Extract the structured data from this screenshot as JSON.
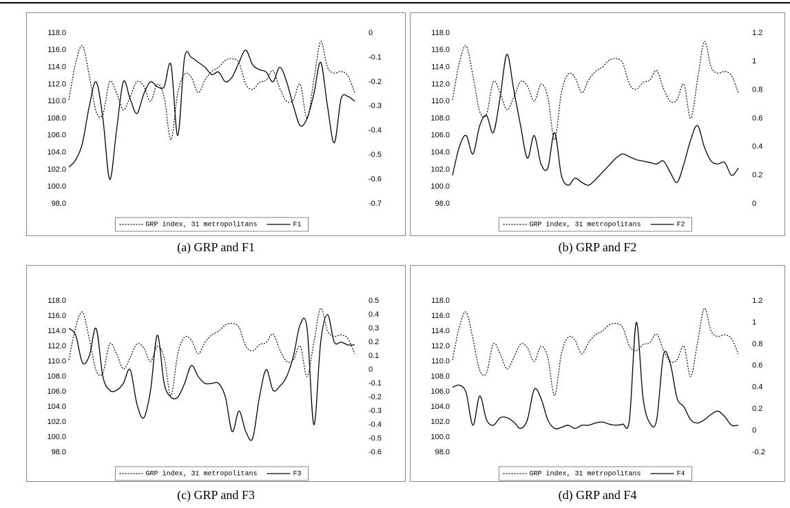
{
  "chart_data": [
    {
      "type": "line",
      "caption": "(a) GRP and F1",
      "categories": [
        null,
        null,
        null,
        null,
        null,
        null,
        null,
        null,
        null,
        null,
        null,
        null,
        null,
        null,
        null,
        null,
        null,
        null,
        null,
        null,
        null,
        null,
        null,
        null,
        null,
        null,
        null,
        null,
        null,
        null,
        null,
        null,
        null,
        null,
        null,
        null,
        null,
        null,
        null,
        null,
        null,
        null,
        null
      ],
      "series": [
        {
          "name": "GRP index, 31 metropolitans",
          "color": "#000000",
          "style": "dotted",
          "values": [
            110.2,
            114.5,
            116.5,
            113,
            108.8,
            108.5,
            112.3,
            111,
            109,
            110.5,
            112.3,
            111.8,
            110,
            112,
            110.5,
            105.5,
            111,
            113.2,
            112.8,
            111,
            112.5,
            113.5,
            114,
            114.8,
            115,
            114.5,
            112,
            111.4,
            112.2,
            112.5,
            113.6,
            111.5,
            110,
            110.2,
            112,
            108,
            112.5,
            117,
            114,
            113.3,
            113.5,
            113,
            111
          ]
        },
        {
          "name": "F1",
          "color": "#000000",
          "style": "solid",
          "axis": "y2",
          "values": [
            -0.55,
            -0.52,
            -0.45,
            -0.3,
            -0.2,
            -0.35,
            -0.6,
            -0.4,
            -0.2,
            -0.27,
            -0.33,
            -0.25,
            -0.2,
            -0.22,
            -0.22,
            -0.13,
            -0.42,
            -0.1,
            -0.1,
            -0.12,
            -0.14,
            -0.17,
            -0.16,
            -0.2,
            -0.18,
            -0.12,
            -0.07,
            -0.13,
            -0.15,
            -0.16,
            -0.2,
            -0.14,
            -0.2,
            -0.3,
            -0.38,
            -0.35,
            -0.25,
            -0.12,
            -0.3,
            -0.45,
            -0.27,
            -0.26,
            -0.28
          ]
        }
      ],
      "ylim": [
        98,
        118
      ],
      "yticks": [
        {
          "value": 98,
          "label": "98.0"
        },
        {
          "value": 100,
          "label": "100.0"
        },
        {
          "value": 102,
          "label": "102.0"
        },
        {
          "value": 104,
          "label": "104.0"
        },
        {
          "value": 106,
          "label": "106.0"
        },
        {
          "value": 108,
          "label": "108.0"
        },
        {
          "value": 110,
          "label": "110.0"
        },
        {
          "value": 112,
          "label": "112.0"
        },
        {
          "value": 114,
          "label": "114.0"
        },
        {
          "value": 116,
          "label": "116.0"
        },
        {
          "value": 118,
          "label": "118.0"
        }
      ],
      "y2lim": [
        -0.7,
        0
      ],
      "y2ticks": [
        -0.7,
        -0.6,
        -0.5,
        -0.4,
        -0.3,
        -0.2,
        -0.1,
        0
      ]
    },
    {
      "type": "line",
      "caption": "(b) GRP and F2",
      "categories": [
        null,
        null,
        null,
        null,
        null,
        null,
        null,
        null,
        null,
        null,
        null,
        null,
        null,
        null,
        null,
        null,
        null,
        null,
        null,
        null,
        null,
        null,
        null,
        null,
        null,
        null,
        null,
        null,
        null,
        null,
        null,
        null,
        null,
        null,
        null,
        null,
        null,
        null,
        null,
        null,
        null,
        null,
        null
      ],
      "series": [
        {
          "name": "GRP index, 31 metropolitans",
          "color": "#000000",
          "style": "dotted",
          "values": [
            110.2,
            114.5,
            116.5,
            113,
            108.8,
            108.5,
            112.3,
            111,
            109,
            110.5,
            112.3,
            111.8,
            110,
            112,
            110.5,
            105.5,
            111,
            113.2,
            112.8,
            111,
            112.5,
            113.5,
            114,
            114.8,
            115,
            114.5,
            112,
            111.4,
            112.2,
            112.5,
            113.6,
            111.5,
            110,
            110.2,
            112,
            108,
            112.5,
            117,
            114,
            113.3,
            113.5,
            113,
            111
          ]
        },
        {
          "name": "F2",
          "color": "#000000",
          "style": "solid",
          "axis": "y2",
          "values": [
            0.2,
            0.4,
            0.48,
            0.35,
            0.55,
            0.62,
            0.5,
            0.75,
            1.05,
            0.8,
            0.55,
            0.32,
            0.48,
            0.28,
            0.25,
            0.5,
            0.2,
            0.13,
            0.18,
            0.15,
            0.13,
            0.17,
            0.22,
            0.27,
            0.32,
            0.35,
            0.33,
            0.31,
            0.3,
            0.29,
            0.28,
            0.3,
            0.22,
            0.15,
            0.28,
            0.45,
            0.55,
            0.4,
            0.3,
            0.28,
            0.29,
            0.2,
            0.25
          ]
        }
      ],
      "ylim": [
        98,
        118
      ],
      "yticks": [
        {
          "value": 98,
          "label": "98.0"
        },
        {
          "value": 100,
          "label": "100.0"
        },
        {
          "value": 102,
          "label": "102.0"
        },
        {
          "value": 104,
          "label": "104.0"
        },
        {
          "value": 106,
          "label": "106.0"
        },
        {
          "value": 108,
          "label": "108.0"
        },
        {
          "value": 110,
          "label": "110.0"
        },
        {
          "value": 112,
          "label": "112.0"
        },
        {
          "value": 114,
          "label": "114.0"
        },
        {
          "value": 116,
          "label": "116.0"
        },
        {
          "value": 118,
          "label": "118.0"
        }
      ],
      "y2lim": [
        0,
        1.2
      ],
      "y2ticks": [
        0,
        0.2,
        0.4,
        0.6,
        0.8,
        1,
        1.2
      ]
    },
    {
      "type": "line",
      "caption": "(c) GRP and F3",
      "categories": [
        null,
        null,
        null,
        null,
        null,
        null,
        null,
        null,
        null,
        null,
        null,
        null,
        null,
        null,
        null,
        null,
        null,
        null,
        null,
        null,
        null,
        null,
        null,
        null,
        null,
        null,
        null,
        null,
        null,
        null,
        null,
        null,
        null,
        null,
        null,
        null,
        null,
        null,
        null,
        null,
        null,
        null,
        null
      ],
      "series": [
        {
          "name": "GRP index, 31 metropolitans",
          "color": "#000000",
          "style": "dotted",
          "values": [
            110.2,
            114.5,
            116.5,
            113,
            108.8,
            108.5,
            112.3,
            111,
            109,
            110.5,
            112.3,
            111.8,
            110,
            112,
            110.5,
            105.5,
            111,
            113.2,
            112.8,
            111,
            112.5,
            113.5,
            114,
            114.8,
            115,
            114.5,
            112,
            111.4,
            112.2,
            112.5,
            113.6,
            111.5,
            110,
            110.2,
            112,
            108,
            112.5,
            117,
            114,
            113.3,
            113.5,
            113,
            111
          ]
        },
        {
          "name": "F3",
          "color": "#000000",
          "style": "solid",
          "axis": "y2",
          "values": [
            0.3,
            0.25,
            0.05,
            0.1,
            0.3,
            -0.05,
            -0.15,
            -0.15,
            -0.1,
            0,
            -0.25,
            -0.35,
            -0.15,
            0.25,
            -0.1,
            -0.2,
            -0.2,
            -0.1,
            0.03,
            -0.05,
            -0.1,
            -0.1,
            -0.1,
            -0.2,
            -0.45,
            -0.3,
            -0.45,
            -0.5,
            -0.2,
            0,
            -0.15,
            -0.12,
            -0.05,
            0.1,
            0.33,
            0.3,
            -0.4,
            0.2,
            0.4,
            0.2,
            0.2,
            0.18,
            0.18
          ]
        }
      ],
      "ylim": [
        98,
        118
      ],
      "yticks": [
        {
          "value": 98,
          "label": "98.0"
        },
        {
          "value": 100,
          "label": "100.0"
        },
        {
          "value": 102,
          "label": "102.0"
        },
        {
          "value": 104,
          "label": "104.0"
        },
        {
          "value": 106,
          "label": "106.0"
        },
        {
          "value": 108,
          "label": "108.0"
        },
        {
          "value": 110,
          "label": "110.0"
        },
        {
          "value": 112,
          "label": "112.0"
        },
        {
          "value": 114,
          "label": "114.0"
        },
        {
          "value": 116,
          "label": "116.0"
        },
        {
          "value": 118,
          "label": "118.0"
        }
      ],
      "y2lim": [
        -0.6,
        0.5
      ],
      "y2ticks": [
        -0.6,
        -0.5,
        -0.4,
        -0.3,
        -0.2,
        -0.1,
        0,
        0.1,
        0.2,
        0.3,
        0.4,
        0.5
      ]
    },
    {
      "type": "line",
      "caption": "(d) GRP and F4",
      "categories": [
        null,
        null,
        null,
        null,
        null,
        null,
        null,
        null,
        null,
        null,
        null,
        null,
        null,
        null,
        null,
        null,
        null,
        null,
        null,
        null,
        null,
        null,
        null,
        null,
        null,
        null,
        null,
        null,
        null,
        null,
        null,
        null,
        null,
        null,
        null,
        null,
        null,
        null,
        null,
        null,
        null,
        null,
        null
      ],
      "series": [
        {
          "name": "GRP index, 31 metropolitans",
          "color": "#000000",
          "style": "dotted",
          "values": [
            110.2,
            114.5,
            116.5,
            113,
            108.8,
            108.5,
            112.3,
            111,
            109,
            110.5,
            112.3,
            111.8,
            110,
            112,
            110.5,
            105.5,
            111,
            113.2,
            112.8,
            111,
            112.5,
            113.5,
            114,
            114.8,
            115,
            114.5,
            112,
            111.4,
            112.2,
            112.5,
            113.6,
            111.5,
            110,
            110.2,
            112,
            108,
            112.5,
            117,
            114,
            113.3,
            113.5,
            113,
            111
          ]
        },
        {
          "name": "F4",
          "color": "#000000",
          "style": "solid",
          "axis": "y2",
          "values": [
            0.4,
            0.42,
            0.35,
            0.05,
            0.32,
            0.1,
            0.05,
            0.12,
            0.12,
            0.08,
            0.02,
            0.1,
            0.38,
            0.3,
            0.1,
            0.02,
            0.03,
            0.05,
            0.02,
            0.05,
            0.05,
            0.07,
            0.08,
            0.06,
            0.05,
            0.06,
            0.1,
            1.0,
            0.3,
            0.07,
            0.1,
            0.7,
            0.62,
            0.3,
            0.22,
            0.1,
            0.07,
            0.1,
            0.15,
            0.18,
            0.13,
            0.05,
            0.05
          ]
        }
      ],
      "ylim": [
        98,
        118
      ],
      "yticks": [
        {
          "value": 98,
          "label": "98.0"
        },
        {
          "value": 100,
          "label": "100.0"
        },
        {
          "value": 102,
          "label": "102.0"
        },
        {
          "value": 104,
          "label": "104.0"
        },
        {
          "value": 106,
          "label": "106.0"
        },
        {
          "value": 108,
          "label": "108.0"
        },
        {
          "value": 110,
          "label": "110.0"
        },
        {
          "value": 112,
          "label": "112.0"
        },
        {
          "value": 114,
          "label": "114.0"
        },
        {
          "value": 116,
          "label": "116.0"
        },
        {
          "value": 118,
          "label": "118.0"
        }
      ],
      "y2lim": [
        -0.2,
        1.2
      ],
      "y2ticks": [
        -0.2,
        0,
        0.2,
        0.4,
        0.6,
        0.8,
        1,
        1.2
      ]
    }
  ]
}
